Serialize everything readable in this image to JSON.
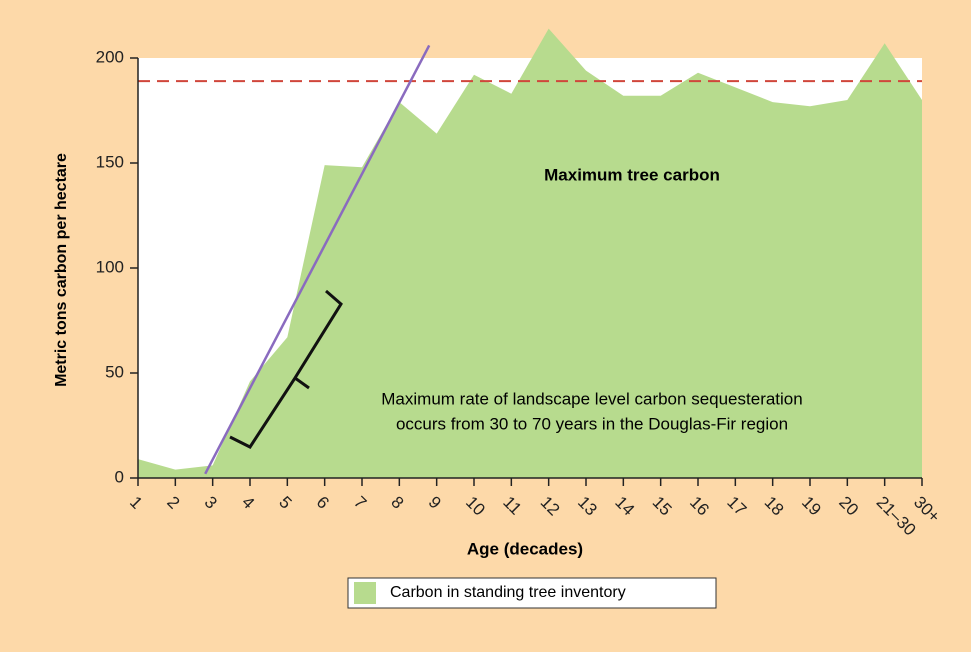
{
  "chart_data": {
    "type": "area",
    "x_label": "Age (decades)",
    "y_label": "Metric tons carbon per hectare",
    "categories": [
      "1",
      "2",
      "3",
      "4",
      "5",
      "6",
      "7",
      "8",
      "9",
      "10",
      "11",
      "12",
      "13",
      "14",
      "15",
      "16",
      "17",
      "18",
      "19",
      "20",
      "21–30",
      "30+"
    ],
    "series": [
      {
        "name": "Carbon in standing tree inventory",
        "color": "#b7db8e",
        "values": [
          9,
          4,
          6,
          46,
          67,
          149,
          148,
          179,
          164,
          192,
          183,
          214,
          194,
          182,
          182,
          193,
          186,
          179,
          177,
          180,
          207,
          180
        ]
      }
    ],
    "ylim": [
      0,
      200
    ],
    "yticks": [
      0,
      50,
      100,
      150,
      200
    ],
    "reference_line": {
      "label": "Maximum tree carbon",
      "value": 189,
      "color": "#d0463b"
    },
    "trend_line": {
      "color": "#8a6bbf",
      "x_index": [
        1.8,
        7.8
      ],
      "values": [
        2,
        206
      ]
    },
    "annotation": [
      "Maximum rate of landscape level carbon sequesteration",
      "occurs from 30 to 70 years in the Douglas-Fir region"
    ]
  }
}
